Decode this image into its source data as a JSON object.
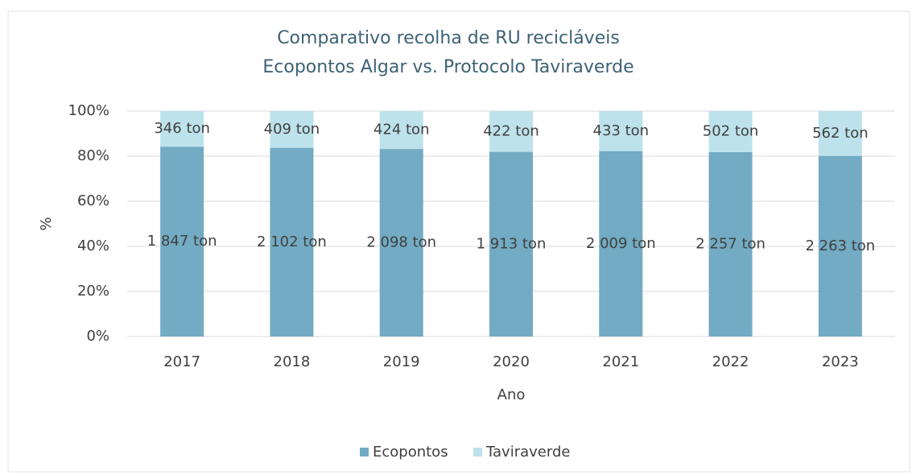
{
  "chart_data": {
    "type": "bar",
    "stacking": "percent",
    "title": [
      "Comparativo recolha de RU recicláveis",
      "Ecopontos Algar vs. Protocolo Taviraverde"
    ],
    "x_label": "Ano",
    "y_label": "%",
    "categories": [
      "2017",
      "2018",
      "2019",
      "2020",
      "2021",
      "2022",
      "2023"
    ],
    "series": [
      {
        "name": "Ecopontos",
        "color": "#72abc3",
        "values": [
          1847,
          2102,
          2098,
          1913,
          2009,
          2257,
          2263
        ],
        "value_labels": [
          "1 847 ton",
          "2 102 ton",
          "2 098 ton",
          "1 913 ton",
          "2 009 ton",
          "2 257 ton",
          "2 263 ton"
        ]
      },
      {
        "name": "Taviraverde",
        "color": "#bde2ec",
        "values": [
          346,
          409,
          424,
          422,
          433,
          502,
          562
        ],
        "value_labels": [
          "346 ton",
          "409 ton",
          "424 ton",
          "422 ton",
          "433 ton",
          "502 ton",
          "562 ton"
        ]
      }
    ],
    "ylim": [
      0,
      100
    ],
    "yticks": [
      {
        "value": 0,
        "label": "0%"
      },
      {
        "value": 20,
        "label": "20%"
      },
      {
        "value": 40,
        "label": "40%"
      },
      {
        "value": 60,
        "label": "60%"
      },
      {
        "value": 80,
        "label": "80%"
      },
      {
        "value": 100,
        "label": "100%"
      }
    ],
    "grid": true,
    "legend": "bottom"
  }
}
